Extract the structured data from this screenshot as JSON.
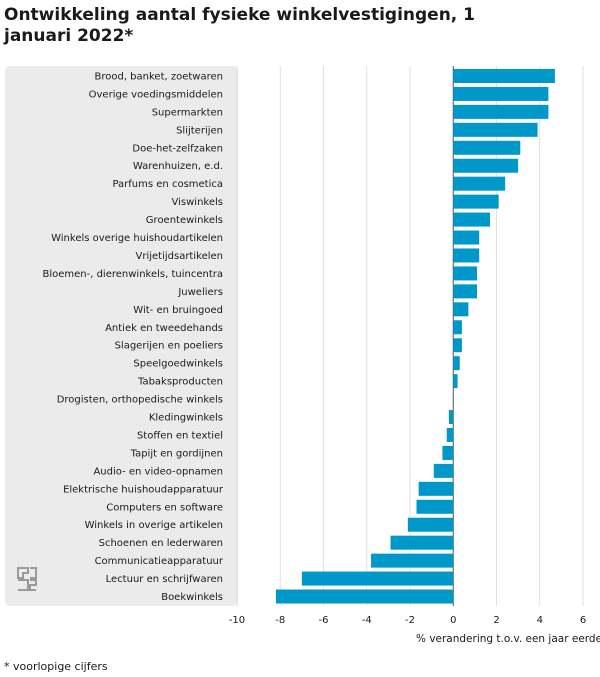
{
  "chart_data": {
    "type": "bar",
    "orientation": "horizontal",
    "title": "Ontwikkeling aantal fysieke winkelvestigingen, 1 januari 2022*",
    "xlabel": "% verandering t.o.v. een jaar eerder",
    "ylabel": "",
    "xlim": [
      -10,
      6
    ],
    "xticks": [
      -10,
      -8,
      -6,
      -4,
      -2,
      0,
      2,
      4,
      6
    ],
    "grid": true,
    "bar_color": "#0097c9",
    "categories": [
      "Brood, banket, zoetwaren",
      "Overige voedingsmiddelen",
      "Supermarkten",
      "Slijterijen",
      "Doe-het-zelfzaken",
      "Warenhuizen, e.d.",
      "Parfums en cosmetica",
      "Viswinkels",
      "Groentewinkels",
      "Winkels overige huishoudartikelen",
      "Vrijetijdsartikelen",
      "Bloemen-, dierenwinkels, tuincentra",
      "Juweliers",
      "Wit- en bruingoed",
      "Antiek en tweedehands",
      "Slagerijen en poeliers",
      "Speelgoedwinkels",
      "Tabaksproducten",
      "Drogisten, orthopedische winkels",
      "Kledingwinkels",
      "Stoffen en textiel",
      "Tapijt en gordijnen",
      "Audio- en video-opnamen",
      "Elektrische huishoudapparatuur",
      "Computers en software",
      "Winkels in overige artikelen",
      "Schoenen en lederwaren",
      "Communicatieapparatuur",
      "Lectuur en schrijfwaren",
      "Boekwinkels"
    ],
    "values": [
      4.7,
      4.4,
      4.4,
      3.9,
      3.1,
      3.0,
      2.4,
      2.1,
      1.7,
      1.2,
      1.2,
      1.1,
      1.1,
      0.7,
      0.4,
      0.4,
      0.3,
      0.2,
      0.0,
      -0.2,
      -0.3,
      -0.5,
      -0.9,
      -1.6,
      -1.7,
      -2.1,
      -2.9,
      -3.8,
      -7.0,
      -8.2
    ]
  },
  "footnote": "* voorlopige cijfers",
  "logo_text": "cbs"
}
